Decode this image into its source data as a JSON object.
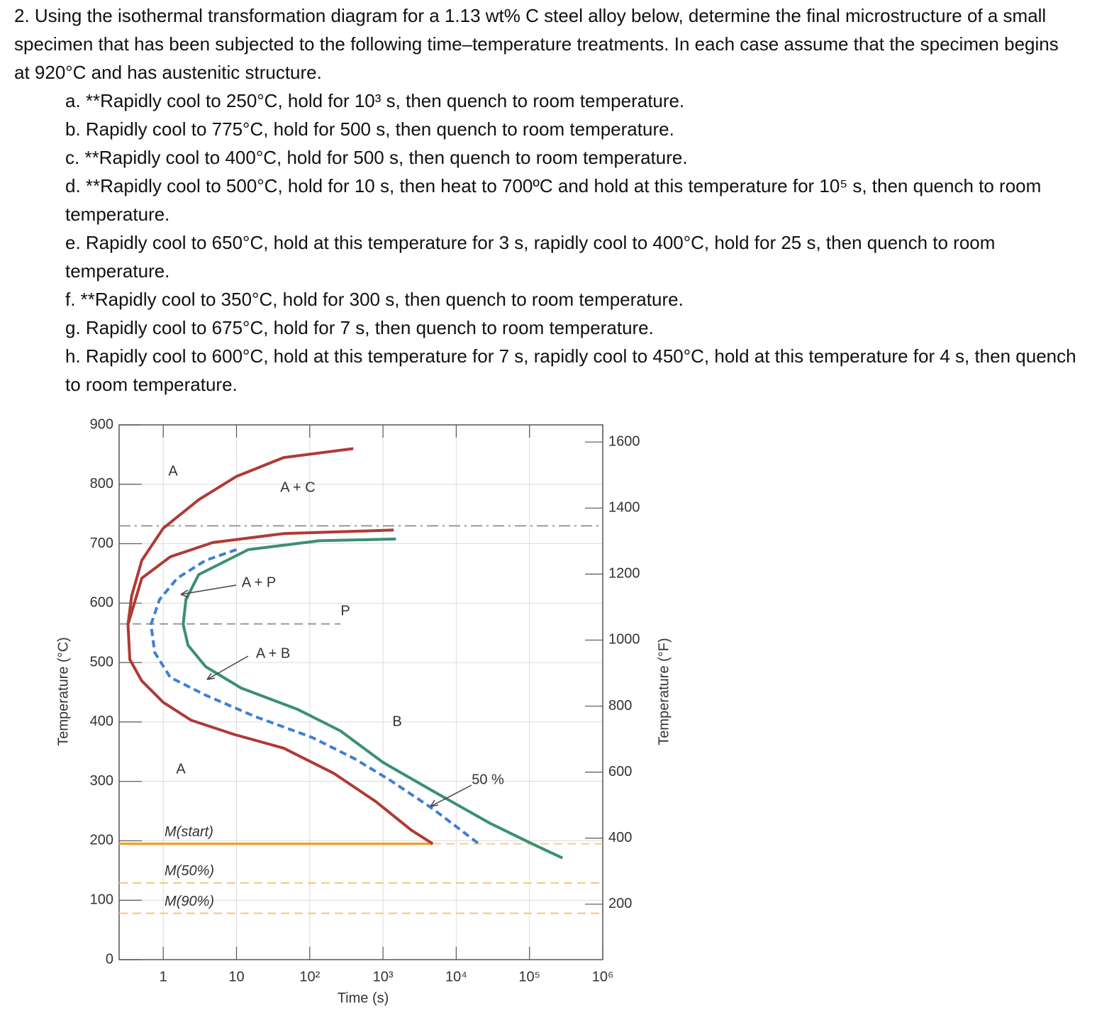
{
  "question": {
    "intro": "2. Using the isothermal transformation diagram for a 1.13 wt% C steel alloy below, determine the final microstructure of a small specimen that has been subjected to the following time–temperature treatments. In each case assume that the specimen begins at 920°C and has austenitic structure.",
    "items": [
      "a. **Rapidly cool to 250°C, hold for 10³ s, then quench to room temperature.",
      "b. Rapidly cool to 775°C, hold for 500 s, then quench to room temperature.",
      "c. **Rapidly cool to 400°C, hold for 500 s, then quench to room temperature.",
      "d. **Rapidly cool to 500°C, hold for 10 s, then heat to 700ºC and hold at this temperature for 10⁵ s, then quench to room temperature.",
      "e. Rapidly cool to 650°C, hold at this temperature for 3 s, rapidly cool to 400°C, hold for 25 s, then quench to room temperature.",
      "f. **Rapidly cool to 350°C, hold for 300 s, then quench to room temperature.",
      "g. Rapidly cool to 675°C, hold for 7 s, then quench to room temperature.",
      "h. Rapidly cool to 600°C, hold at this temperature for 7 s, rapidly cool to 450°C, hold at this temperature for 4 s, then quench to room temperature."
    ]
  },
  "chart_data": {
    "type": "line",
    "x_label": "Time (s)",
    "y_label": "Temperature (°C)",
    "y2_label": "Temperature (°F)",
    "xscale": "log",
    "grid": true,
    "xlim": [
      0.25,
      1000000
    ],
    "xticks": [
      1,
      10,
      {
        "value": 100,
        "label": "10²"
      },
      {
        "value": 1000,
        "label": "10³"
      },
      {
        "value": 10000,
        "label": "10⁴"
      },
      {
        "value": 100000,
        "label": "10⁵"
      },
      {
        "value": 1000000,
        "label": "10⁶"
      }
    ],
    "ylim": [
      0,
      900
    ],
    "yticks": [
      0,
      100,
      200,
      300,
      400,
      500,
      600,
      700,
      800,
      900
    ],
    "y2lim": [
      32,
      1652
    ],
    "y2ticks": [
      200,
      400,
      600,
      800,
      1000,
      1200,
      1400,
      1600
    ],
    "series": [
      {
        "color": "#b03a35",
        "style": "solid",
        "x": [
          393,
          44,
          9.9,
          3.05,
          1,
          0.51,
          0.37,
          0.33,
          0.35,
          0.51,
          1,
          2.4,
          9.3,
          44,
          210,
          800,
          2440,
          4770
        ],
        "values": [
          860,
          845,
          813,
          774,
          726,
          672,
          612,
          564,
          505,
          469,
          433,
          403,
          379,
          356,
          314,
          266,
          218,
          195
        ]
      },
      {
        "color": "#b03a35",
        "style": "solid",
        "x": [
          0.33,
          0.51,
          1.25,
          4.76,
          44,
          1400
        ],
        "values": [
          564,
          642,
          678,
          702,
          717,
          723
        ]
      },
      {
        "color": "#3f7fd0",
        "style": "dashed",
        "x": [
          10,
          3.8,
          1.56,
          0.89,
          0.68,
          0.765,
          1.25,
          3.8,
          18,
          108,
          411,
          1250,
          4770,
          20300
        ],
        "values": [
          690,
          672,
          642,
          606,
          564,
          517,
          475,
          445,
          409,
          374,
          338,
          302,
          254,
          195
        ]
      },
      {
        "color": "#3a9070",
        "style": "solid",
        "x": [
          1500,
          135,
          14.5,
          3.05,
          2.04,
          1.87,
          2.18,
          3.8,
          11.6,
          69,
          263,
          1000,
          4770,
          28400,
          108000,
          282000
        ],
        "values": [
          708,
          705,
          690,
          648,
          606,
          564,
          529,
          493,
          457,
          421,
          385,
          332,
          284,
          230,
          195,
          171
        ]
      }
    ],
    "hlines": [
      {
        "value": 730,
        "color": "#999999",
        "style": "dashdot"
      },
      {
        "value": 565,
        "color": "#999999",
        "style": "dashed",
        "until": 263
      },
      {
        "value": 195,
        "color": "#f0a030",
        "style": "solid",
        "until": 4770,
        "label": "M(start)"
      },
      {
        "value": 129,
        "color": "#f5c77a",
        "style": "dashed",
        "label": "M(50%)"
      },
      {
        "value": 78,
        "color": "#f5c77a",
        "style": "dashed",
        "label": "M(90%)"
      }
    ],
    "annotations": [
      "A",
      "A + C",
      "A + P",
      "P",
      "A + B",
      "B",
      "A",
      "50 %"
    ]
  }
}
